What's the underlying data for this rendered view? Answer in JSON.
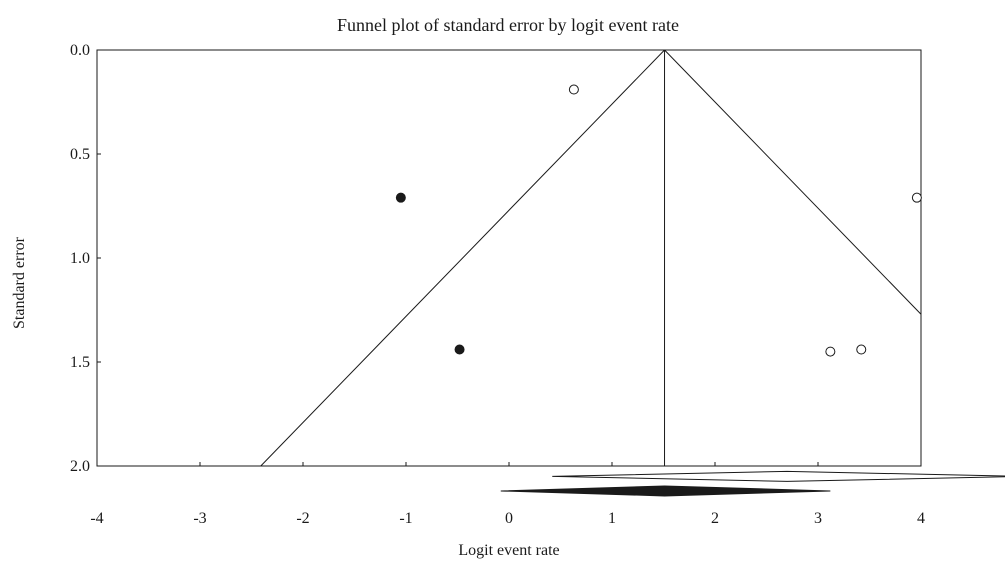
{
  "chart_data": {
    "type": "scatter",
    "title": "Funnel plot of standard error by logit event rate",
    "xlabel": "Logit event rate",
    "ylabel": "Standard error",
    "xlim": [
      -4,
      4
    ],
    "ylim": [
      0,
      2
    ],
    "y_reversed": true,
    "x_ticks": [
      -4,
      -3,
      -2,
      -1,
      0,
      1,
      2,
      3,
      4
    ],
    "y_ticks": [
      0,
      0.5,
      1,
      1.5,
      2
    ],
    "x_tick_labels": [
      "-4",
      "-3",
      "-2",
      "-1",
      "0",
      "1",
      "2",
      "3",
      "4"
    ],
    "y_tick_labels": [
      "0.0",
      "0.5",
      "1.0",
      "1.5",
      "2.0"
    ],
    "grid": false,
    "series": [
      {
        "marker": "open-circle",
        "points": [
          {
            "x": 0.63,
            "y": 0.19
          },
          {
            "x": 3.96,
            "y": 0.71
          },
          {
            "x": 3.12,
            "y": 1.45
          },
          {
            "x": 3.42,
            "y": 1.44
          }
        ]
      },
      {
        "marker": "filled-circle",
        "points": [
          {
            "x": -1.05,
            "y": 0.71
          },
          {
            "x": -0.48,
            "y": 1.44
          }
        ]
      }
    ],
    "funnel": {
      "center_x": 1.51,
      "ci_multiplier": 1.96
    },
    "summary_diamonds": [
      {
        "style": "open",
        "center": 2.7,
        "low": 0.42,
        "high": 4.99,
        "row_y": 2.05
      },
      {
        "style": "filled",
        "center": 1.51,
        "low": -0.08,
        "high": 3.12,
        "row_y": 2.12
      }
    ],
    "colors": {
      "ink": "#1a1a1a",
      "background": "#ffffff"
    }
  }
}
